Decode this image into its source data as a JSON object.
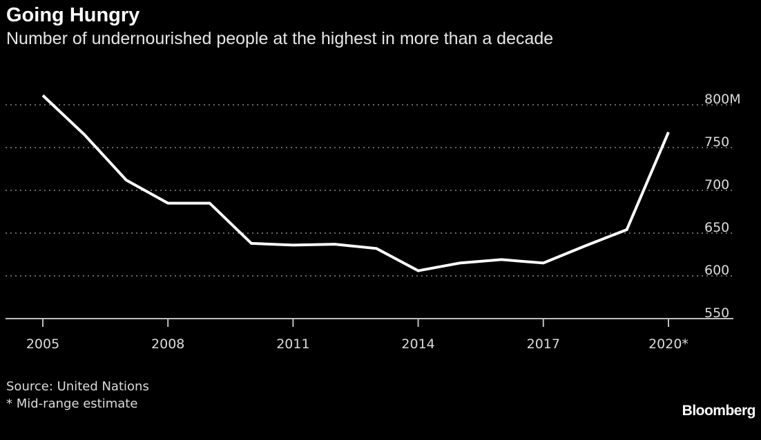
{
  "chart_data": {
    "type": "line",
    "title": "Going Hungry",
    "subtitle": "Number of undernourished people at the highest in more than a decade",
    "x": [
      2005,
      2006,
      2007,
      2008,
      2009,
      2010,
      2011,
      2012,
      2013,
      2014,
      2015,
      2016,
      2017,
      2018,
      2019,
      2020
    ],
    "series": [
      {
        "values": [
          811,
          765,
          712,
          685,
          685,
          638,
          636,
          637,
          632,
          606,
          615,
          619,
          615,
          635,
          654,
          768
        ]
      }
    ],
    "x_ticks": [
      "2005",
      "2008",
      "2011",
      "2014",
      "2017",
      "2020*"
    ],
    "y_ticks": [
      "550",
      "600",
      "650",
      "700",
      "750",
      "800M"
    ],
    "ylim": [
      550,
      800
    ],
    "xlabel": "",
    "ylabel": "",
    "grid": "horizontal dotted",
    "y_axis_side": "right",
    "line_color": "#ffffff",
    "background_color": "#000000"
  },
  "footnotes": {
    "source": "Source: United Nations",
    "note": "* Mid-range estimate"
  },
  "brand": "Bloomberg"
}
